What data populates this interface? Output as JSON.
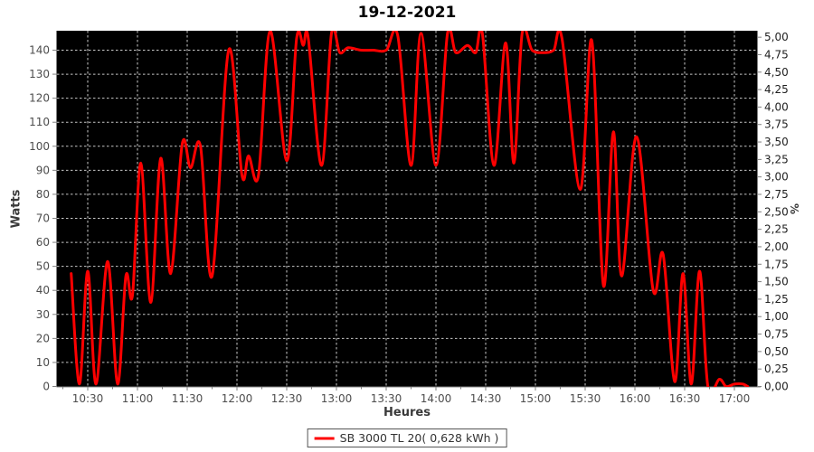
{
  "header": {
    "title": "19-12-2021"
  },
  "legend": {
    "label": "SB 3000 TL 20( 0,628 kWh )",
    "marker_color": "#ff0000"
  },
  "axes": {
    "x": {
      "title": "Heures",
      "ticks": [
        "10:30",
        "11:00",
        "11:30",
        "12:00",
        "12:30",
        "13:00",
        "13:30",
        "14:00",
        "14:30",
        "15:00",
        "15:30",
        "16:00",
        "16:30",
        "17:00"
      ]
    },
    "y_left": {
      "title": "Watts",
      "ticks": [
        "0",
        "10",
        "20",
        "30",
        "40",
        "50",
        "60",
        "70",
        "80",
        "90",
        "100",
        "110",
        "120",
        "130",
        "140"
      ]
    },
    "y_right": {
      "title": "%",
      "ticks": [
        "0,00",
        "0,25",
        "0,50",
        "0,75",
        "1,00",
        "1,25",
        "1,50",
        "1,75",
        "2,00",
        "2,25",
        "2,50",
        "2,75",
        "3,00",
        "3,25",
        "3,50",
        "3,75",
        "4,00",
        "4,25",
        "4,50",
        "4,75",
        "5,00"
      ]
    }
  },
  "colors": {
    "plot_background": "#000000",
    "gridline": "#c8c8c8",
    "axis_line": "#808080",
    "tick_label_left_bottom": "#4d4d4d",
    "tick_label_right": "#1f1f1f",
    "series_line": "#ff0000"
  },
  "chart_data": {
    "type": "line",
    "title": "19-12-2021",
    "xlabel": "Heures",
    "ylabel": "Watts",
    "ylabel_right": "%",
    "x_range_hours": [
      10.19,
      17.23
    ],
    "watts_range": [
      0,
      148.1
    ],
    "pct_range": [
      0,
      5
    ],
    "pct_full_scale_watts": 145.4,
    "grid": "dashed both axes, every 10 W and every 30 min",
    "legend_position": "bottom",
    "series": [
      {
        "name": "SB 3000 TL 20( 0,628 kWh )",
        "color": "#ff0000",
        "points_time_watts": [
          [
            "10:20",
            47
          ],
          [
            "10:25",
            1
          ],
          [
            "10:30",
            48
          ],
          [
            "10:35",
            1
          ],
          [
            "10:42",
            52
          ],
          [
            "10:48",
            1
          ],
          [
            "10:53",
            46
          ],
          [
            "10:57",
            38
          ],
          [
            "11:02",
            93
          ],
          [
            "11:08",
            35
          ],
          [
            "11:14",
            95
          ],
          [
            "11:20",
            47
          ],
          [
            "11:27",
            101
          ],
          [
            "11:32",
            91
          ],
          [
            "11:38",
            100
          ],
          [
            "11:45",
            46
          ],
          [
            "11:55",
            140
          ],
          [
            "12:03",
            88
          ],
          [
            "12:07",
            96
          ],
          [
            "12:13",
            88
          ],
          [
            "12:20",
            148
          ],
          [
            "12:30",
            94
          ],
          [
            "12:36",
            145
          ],
          [
            "12:40",
            142
          ],
          [
            "12:43",
            145
          ],
          [
            "12:51",
            92
          ],
          [
            "12:57",
            147
          ],
          [
            "13:02",
            139
          ],
          [
            "13:07",
            141
          ],
          [
            "13:15",
            140
          ],
          [
            "13:22",
            140
          ],
          [
            "13:30",
            140
          ],
          [
            "13:37",
            146
          ],
          [
            "13:45",
            92
          ],
          [
            "13:51",
            147
          ],
          [
            "14:00",
            92
          ],
          [
            "14:07",
            147
          ],
          [
            "14:12",
            139
          ],
          [
            "14:19",
            142
          ],
          [
            "14:24",
            139
          ],
          [
            "14:28",
            147
          ],
          [
            "14:35",
            92
          ],
          [
            "14:42",
            143
          ],
          [
            "14:47",
            93
          ],
          [
            "14:52",
            147
          ],
          [
            "14:58",
            140
          ],
          [
            "15:05",
            139
          ],
          [
            "15:11",
            140
          ],
          [
            "15:16",
            145
          ],
          [
            "15:27",
            82
          ],
          [
            "15:34",
            144
          ],
          [
            "15:41",
            42
          ],
          [
            "15:47",
            106
          ],
          [
            "15:52",
            46
          ],
          [
            "16:01",
            104
          ],
          [
            "16:11",
            40
          ],
          [
            "16:17",
            55
          ],
          [
            "16:24",
            2
          ],
          [
            "16:29",
            47
          ],
          [
            "16:34",
            1
          ],
          [
            "16:39",
            48
          ],
          [
            "16:44",
            0
          ],
          [
            "16:51",
            3
          ],
          [
            "16:55",
            0
          ],
          [
            "17:00",
            1
          ],
          [
            "17:05",
            1
          ],
          [
            "17:08",
            0
          ]
        ]
      }
    ]
  }
}
